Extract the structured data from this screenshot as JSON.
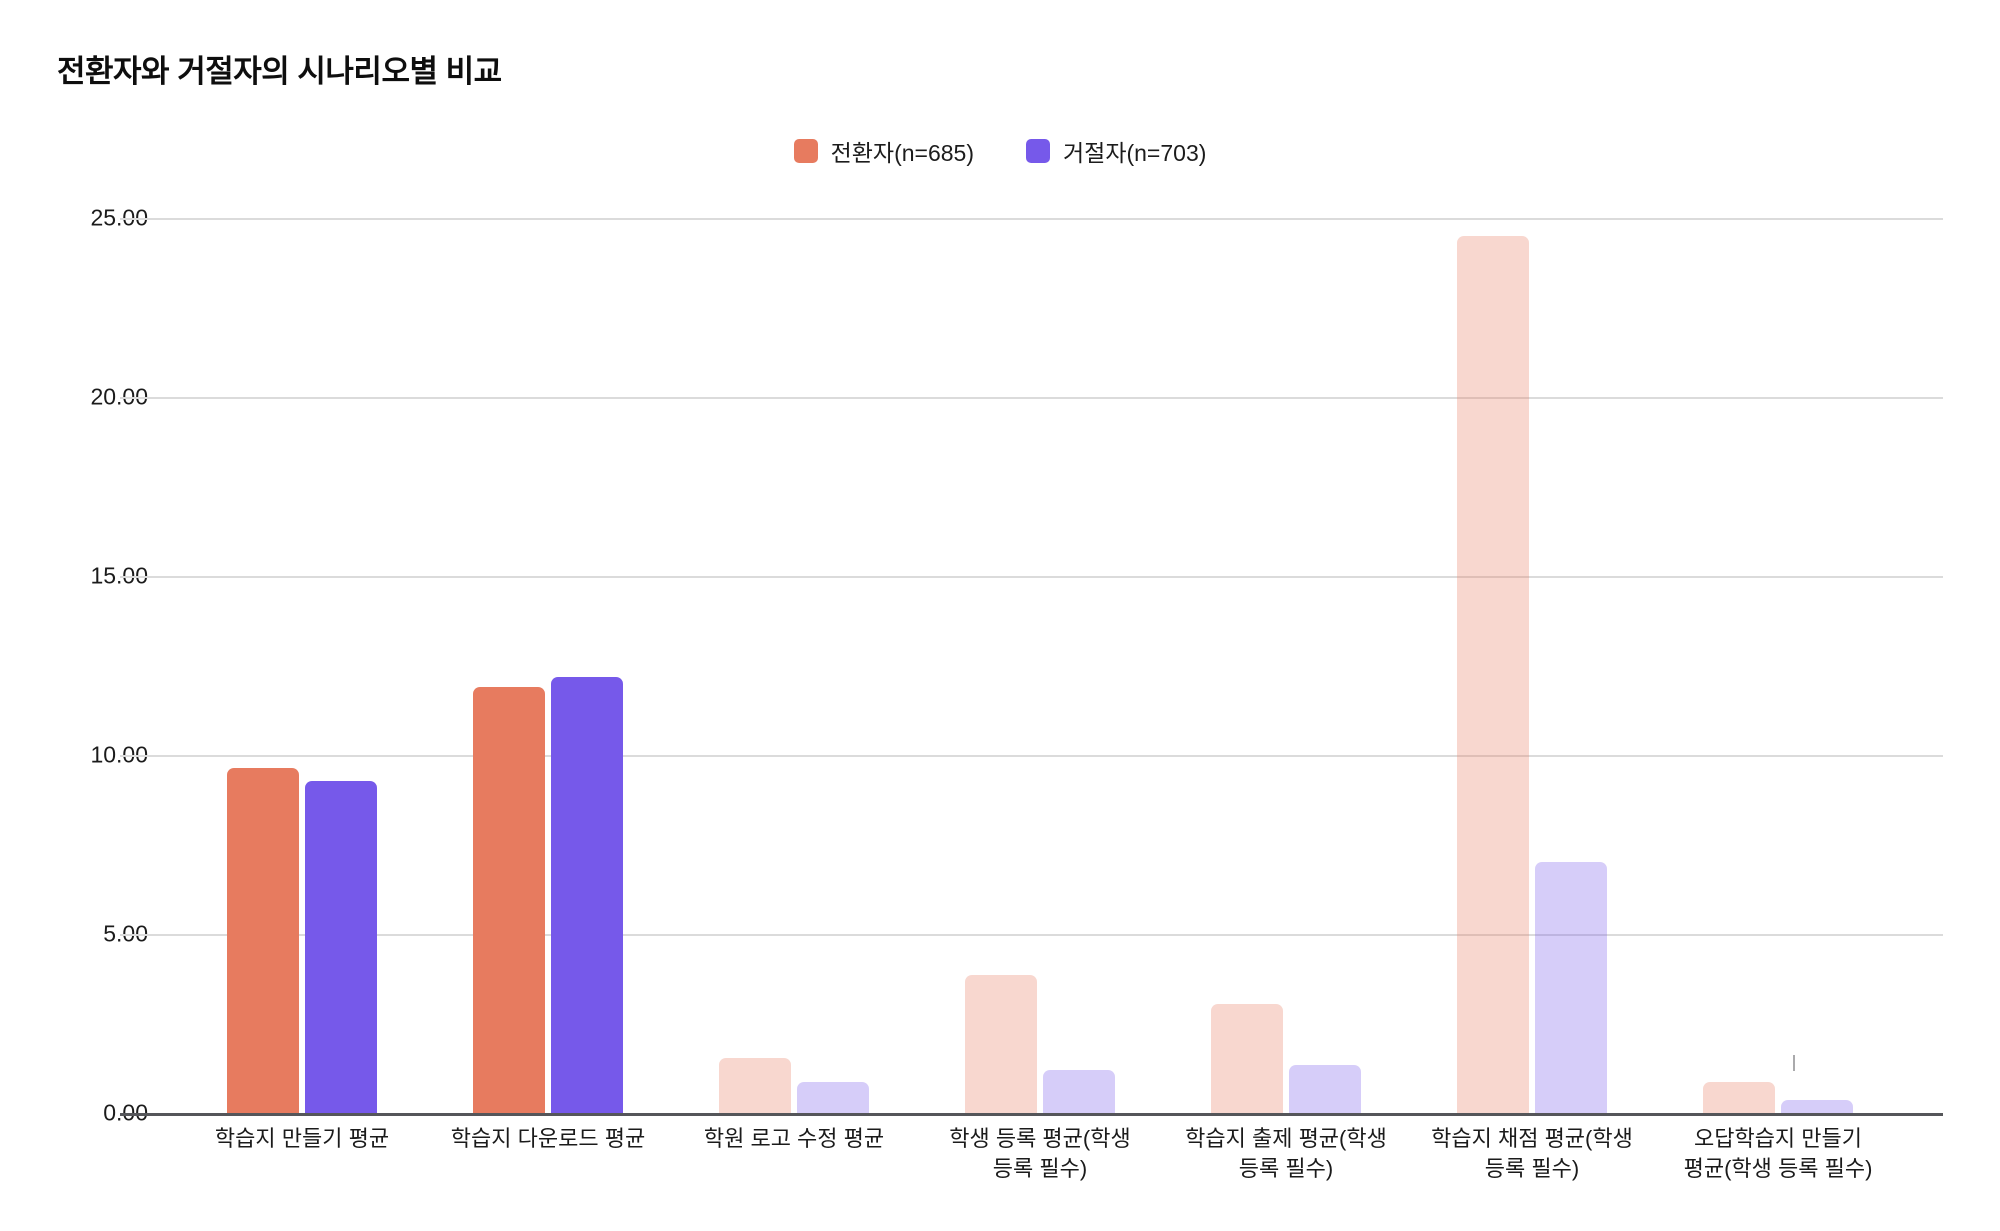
{
  "title": "전환자와 거절자의 시나리오별 비교",
  "legend": {
    "items": [
      {
        "label": "전환자(n=685)",
        "color": "#e77b5f"
      },
      {
        "label": "거절자(n=703)",
        "color": "#7659ea"
      }
    ]
  },
  "chart_data": {
    "type": "bar",
    "title": "전환자와 거절자의 시나리오별 비교",
    "categories": [
      "학습지 만들기 평균",
      "학습지 다운로드 평균",
      "학원 로고 수정 평균",
      "학생 등록 평균(학생 등록 필수)",
      "학습지 출제 평균(학생 등록 필수)",
      "학습지 채점 평균(학생 등록 필수)",
      "오답학습지 만들기 평균(학생 등록 필수)"
    ],
    "category_label_lines": [
      [
        "학습지 만들기 평균"
      ],
      [
        "학습지 다운로드 평균"
      ],
      [
        "학원 로고 수정 평균"
      ],
      [
        "학생 등록 평균(학생",
        "등록 필수)"
      ],
      [
        "학습지 출제 평균(학생",
        "등록 필수)"
      ],
      [
        "학습지 채점 평균(학생",
        "등록 필수)"
      ],
      [
        "오답학습지 만들기",
        "평균(학생 등록 필수)"
      ]
    ],
    "series": [
      {
        "name": "전환자(n=685)",
        "color": "#e77b5f",
        "values": [
          9.65,
          11.9,
          1.55,
          3.85,
          3.05,
          24.5,
          0.87
        ]
      },
      {
        "name": "거절자(n=703)",
        "color": "#7659ea",
        "values": [
          9.28,
          12.18,
          0.87,
          1.2,
          1.34,
          7.0,
          0.35
        ]
      }
    ],
    "highlighted_categories": [
      0,
      1
    ],
    "faded_opacity": 0.3,
    "ylim": [
      0,
      25
    ],
    "yticks": [
      "25.00",
      "20.00",
      "15.00",
      "10.00",
      "5.00",
      "0.00"
    ],
    "grid": true,
    "legend_position": "top-center",
    "xlabel": "",
    "ylabel": ""
  }
}
